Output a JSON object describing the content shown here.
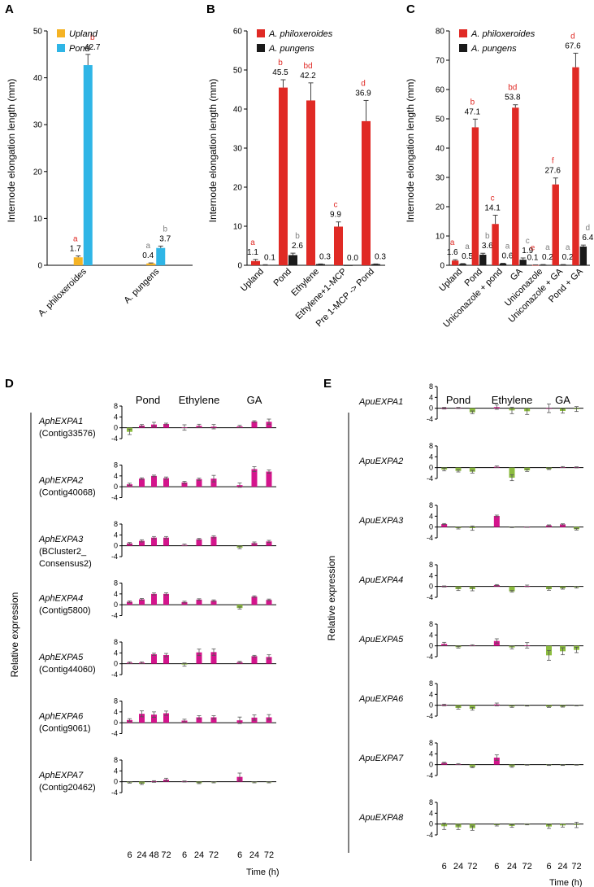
{
  "colors": {
    "upland": "#f5b324",
    "pond": "#2fb5e6",
    "philoxeroides": "#e02a25",
    "pungens": "#1a1a1a",
    "positive": "#d4148c",
    "negative": "#8cbd3f",
    "significance": "#e02a25",
    "significance_grey": "#7f7f7f"
  },
  "axis_title": "Internode elongation length (mm)",
  "relative_expression_label": "Relative expression",
  "time_label": "Time (h)",
  "panels": {
    "A": {
      "letter": "A"
    },
    "B": {
      "letter": "B"
    },
    "C": {
      "letter": "C"
    },
    "D": {
      "letter": "D"
    },
    "E": {
      "letter": "E"
    }
  },
  "chart_data": [
    {
      "panel": "A",
      "type": "bar",
      "title": "",
      "xlabel": "",
      "ylabel": "Internode elongation length (mm)",
      "ylim": [
        0,
        50
      ],
      "yticks": [
        0,
        10,
        20,
        30,
        40,
        50
      ],
      "categories": [
        "A. philoxeroides",
        "A. pungens"
      ],
      "series": [
        {
          "name": "Upland",
          "color": "#f5b324",
          "values": [
            1.7,
            0.4
          ],
          "errors": [
            0.3,
            0.1
          ],
          "labels": [
            "1.7",
            "0.4"
          ],
          "sig": [
            "a",
            "a"
          ],
          "sig_colors": [
            "#e02a25",
            "#7f7f7f"
          ]
        },
        {
          "name": "Pond",
          "color": "#2fb5e6",
          "values": [
            42.7,
            3.7
          ],
          "errors": [
            2.3,
            0.4
          ],
          "labels": [
            "42.7",
            "3.7"
          ],
          "sig": [
            "b",
            "b"
          ],
          "sig_colors": [
            "#e02a25",
            "#7f7f7f"
          ]
        }
      ],
      "legend": "top-right"
    },
    {
      "panel": "B",
      "type": "bar",
      "title": "",
      "ylabel": "Internode elongation length (mm)",
      "ylim": [
        0,
        60
      ],
      "yticks": [
        0,
        10,
        20,
        30,
        40,
        50,
        60
      ],
      "categories": [
        "Upland",
        "Pond",
        "Ethylene",
        "Ethylene+1-MCP",
        "Pre 1-MCP -> Pond"
      ],
      "series": [
        {
          "name": "A. philoxeroides",
          "color": "#e02a25",
          "values": [
            1.1,
            45.5,
            42.2,
            9.9,
            36.9
          ],
          "errors": [
            0.4,
            2.0,
            4.5,
            1.2,
            5.3
          ],
          "labels": [
            "1.1",
            "45.5",
            "42.2",
            "9.9",
            "36.9"
          ],
          "sig": [
            "a",
            "b",
            "bd",
            "c",
            "d"
          ],
          "sig_colors": [
            "#e02a25",
            "#e02a25",
            "#e02a25",
            "#e02a25",
            "#e02a25"
          ]
        },
        {
          "name": "A. pungens",
          "color": "#1a1a1a",
          "values": [
            0.1,
            2.6,
            0.3,
            0.0,
            0.3
          ],
          "errors": [
            0.05,
            0.5,
            0.05,
            0.0,
            0.05
          ],
          "labels": [
            "0.1",
            "2.6",
            "0.3",
            "0.0",
            "0.3"
          ],
          "sig": [
            "",
            "b",
            "",
            "",
            ""
          ],
          "sig_colors": [
            "#7f7f7f",
            "#7f7f7f",
            "#7f7f7f",
            "#7f7f7f",
            "#7f7f7f"
          ]
        }
      ],
      "legend": "top-left"
    },
    {
      "panel": "C",
      "type": "bar",
      "title": "",
      "ylabel": "Internode elongation length (mm)",
      "ylim": [
        0,
        80
      ],
      "yticks": [
        0,
        10,
        20,
        30,
        40,
        50,
        60,
        70,
        80
      ],
      "categories": [
        "Upland",
        "Pond",
        "Uniconazole + pond",
        "GA",
        "Uniconazole",
        "Uniconazole + GA",
        "Pond + GA"
      ],
      "series": [
        {
          "name": "A. philoxeroides",
          "color": "#e02a25",
          "values": [
            1.6,
            47.1,
            14.1,
            53.8,
            0.1,
            27.6,
            67.6
          ],
          "errors": [
            0.3,
            2.8,
            3.0,
            1.0,
            0.05,
            2.2,
            4.8
          ],
          "labels": [
            "1.6",
            "47.1",
            "14.1",
            "53.8",
            "0.1",
            "27.6",
            "67.6"
          ],
          "sig": [
            "a",
            "b",
            "c",
            "bd",
            "e",
            "f",
            "d"
          ],
          "sig_colors": [
            "#e02a25",
            "#e02a25",
            "#e02a25",
            "#e02a25",
            "#e02a25",
            "#e02a25",
            "#e02a25"
          ]
        },
        {
          "name": "A. pungens",
          "color": "#1a1a1a",
          "values": [
            0.5,
            3.6,
            0.6,
            1.9,
            0.2,
            0.2,
            6.4
          ],
          "errors": [
            0.1,
            0.5,
            0.1,
            0.6,
            0.05,
            0.05,
            0.5
          ],
          "labels": [
            "0.5",
            "3.6",
            "0.6",
            "1.9",
            "0.2",
            "0.2",
            "6.4"
          ],
          "sig": [
            "a",
            "b",
            "a",
            "c",
            "a",
            "a",
            "d"
          ],
          "sig_colors": [
            "#7f7f7f",
            "#7f7f7f",
            "#7f7f7f",
            "#7f7f7f",
            "#7f7f7f",
            "#7f7f7f",
            "#7f7f7f"
          ]
        }
      ],
      "legend": "top-left"
    },
    {
      "panel": "D",
      "type": "bar",
      "title": "",
      "ylabel": "Relative expression",
      "xlabel": "Time (h)",
      "ylim": [
        -4,
        8
      ],
      "yticks": [
        -4,
        0,
        4,
        8
      ],
      "groups": [
        {
          "name": "Pond",
          "times": [
            "6",
            "24",
            "48",
            "72"
          ]
        },
        {
          "name": "Ethylene",
          "times": [
            "6",
            "24",
            "72"
          ]
        },
        {
          "name": "GA",
          "times": [
            "6",
            "24",
            "72"
          ]
        }
      ],
      "genes": [
        {
          "name": "AphEXPA1",
          "contig": [
            "(Contig33576)"
          ],
          "values": [
            [
              -1.5,
              0.8,
              1.2,
              1.4
            ],
            [
              0.1,
              0.7,
              0.4
            ],
            [
              0.5,
              2.3,
              2.2
            ]
          ],
          "errors": [
            [
              1.0,
              0.4,
              0.8,
              0.3
            ],
            [
              1.0,
              0.6,
              0.8
            ],
            [
              0.4,
              0.3,
              1.0
            ]
          ]
        },
        {
          "name": "AphEXPA2",
          "contig": [
            "(Contig40068)"
          ],
          "values": [
            [
              0.9,
              3.0,
              4.0,
              3.2
            ],
            [
              1.6,
              2.8,
              3.0
            ],
            [
              0.6,
              6.5,
              5.6
            ]
          ],
          "errors": [
            [
              0.4,
              0.3,
              0.3,
              0.4
            ],
            [
              0.4,
              0.4,
              1.2
            ],
            [
              0.8,
              0.9,
              0.6
            ]
          ]
        },
        {
          "name": "AphEXPA3",
          "contig": [
            "(BCluster2_",
            "Consensus2)"
          ],
          "values": [
            [
              0.9,
              1.8,
              3.0,
              3.0
            ],
            [
              0.3,
              2.4,
              3.3
            ],
            [
              -0.7,
              1.0,
              1.6
            ]
          ],
          "errors": [
            [
              0.3,
              0.4,
              0.4,
              0.4
            ],
            [
              0.3,
              0.3,
              0.4
            ],
            [
              0.4,
              0.4,
              0.4
            ]
          ]
        },
        {
          "name": "AphEXPA4",
          "contig": [
            "(Contig5800)"
          ],
          "values": [
            [
              1.1,
              2.0,
              4.0,
              4.0
            ],
            [
              1.0,
              1.9,
              1.5
            ],
            [
              -1.2,
              3.0,
              1.8
            ]
          ],
          "errors": [
            [
              0.3,
              0.3,
              0.4,
              0.4
            ],
            [
              0.3,
              0.3,
              0.3
            ],
            [
              0.4,
              0.3,
              0.3
            ]
          ]
        },
        {
          "name": "AphEXPA5",
          "contig": [
            "(Contig44060)"
          ],
          "values": [
            [
              0.4,
              0.4,
              3.5,
              3.2
            ],
            [
              -0.3,
              4.2,
              4.3
            ],
            [
              0.6,
              2.8,
              2.5
            ]
          ],
          "errors": [
            [
              0.3,
              0.3,
              0.4,
              0.6
            ],
            [
              0.6,
              1.2,
              1.2
            ],
            [
              0.3,
              0.3,
              0.8
            ]
          ]
        },
        {
          "name": "AphEXPA6",
          "contig": [
            "(Contig9061)"
          ],
          "values": [
            [
              1.0,
              3.3,
              3.0,
              3.5
            ],
            [
              0.8,
              2.0,
              2.0
            ],
            [
              0.9,
              1.9,
              2.0
            ]
          ],
          "errors": [
            [
              0.5,
              1.1,
              1.0,
              0.8
            ],
            [
              0.5,
              0.6,
              0.6
            ],
            [
              1.2,
              1.0,
              1.0
            ]
          ]
        },
        {
          "name": "AphEXPA7",
          "contig": [
            "(Contig20462)"
          ],
          "values": [
            [
              -0.3,
              -0.7,
              0.1,
              0.8
            ],
            [
              0.1,
              -0.5,
              -0.2
            ],
            [
              1.8,
              -0.2,
              -0.2
            ]
          ],
          "errors": [
            [
              0.2,
              0.3,
              0.3,
              0.5
            ],
            [
              0.2,
              0.2,
              0.2
            ],
            [
              1.4,
              0.2,
              0.2
            ]
          ]
        }
      ]
    },
    {
      "panel": "E",
      "type": "bar",
      "title": "",
      "ylabel": "Relative expression",
      "xlabel": "Time (h)",
      "ylim": [
        -4,
        8
      ],
      "yticks": [
        -4,
        0,
        4,
        8
      ],
      "groups": [
        {
          "name": "Pond",
          "times": [
            "6",
            "24",
            "72"
          ]
        },
        {
          "name": "Ethylene",
          "times": [
            "6",
            "24",
            "72"
          ]
        },
        {
          "name": "GA",
          "times": [
            "6",
            "24",
            "72"
          ]
        }
      ],
      "genes": [
        {
          "name": "ApuEXPA1",
          "contig": [],
          "values": [
            [
              0.0,
              0.1,
              -1.5
            ],
            [
              0.4,
              -0.8,
              -1.1
            ],
            [
              0.0,
              -1.0,
              -0.3
            ]
          ],
          "errors": [
            [
              0.3,
              0.2,
              0.5
            ],
            [
              0.8,
              1.2,
              1.2
            ],
            [
              1.6,
              0.8,
              0.9
            ]
          ]
        },
        {
          "name": "ApuEXPA2",
          "contig": [],
          "values": [
            [
              -0.7,
              -1.2,
              -1.5
            ],
            [
              0.3,
              -3.7,
              -1.0
            ],
            [
              -0.5,
              0.2,
              0.1
            ]
          ],
          "errors": [
            [
              0.5,
              0.4,
              0.5
            ],
            [
              0.3,
              1.1,
              0.4
            ],
            [
              0.2,
              0.2,
              0.2
            ]
          ]
        },
        {
          "name": "ApuEXPA3",
          "contig": [],
          "values": [
            [
              1.1,
              -0.4,
              -0.4
            ],
            [
              4.1,
              -0.1,
              0.0
            ],
            [
              0.6,
              1.0,
              -0.8
            ]
          ],
          "errors": [
            [
              0.2,
              0.3,
              0.8
            ],
            [
              0.3,
              0.1,
              0.1
            ],
            [
              0.2,
              0.2,
              0.3
            ]
          ]
        },
        {
          "name": "ApuEXPA4",
          "contig": [],
          "values": [
            [
              0.0,
              -1.0,
              -1.0
            ],
            [
              0.5,
              -1.8,
              0.2
            ],
            [
              -1.0,
              -0.7,
              -0.3
            ]
          ],
          "errors": [
            [
              0.2,
              0.5,
              0.6
            ],
            [
              0.2,
              0.3,
              0.3
            ],
            [
              0.4,
              0.3,
              0.3
            ]
          ]
        },
        {
          "name": "ApuEXPA5",
          "contig": [],
          "values": [
            [
              0.7,
              -0.5,
              0.2
            ],
            [
              1.8,
              -0.6,
              0.2
            ],
            [
              -3.5,
              -2.0,
              -1.5
            ]
          ],
          "errors": [
            [
              0.6,
              0.3,
              0.2
            ],
            [
              0.8,
              0.5,
              1.0
            ],
            [
              1.8,
              1.3,
              1.0
            ]
          ]
        },
        {
          "name": "ApuEXPA6",
          "contig": [],
          "values": [
            [
              0.1,
              -1.0,
              -1.3
            ],
            [
              0.3,
              -0.5,
              -0.2
            ],
            [
              -0.6,
              -0.5,
              -0.1
            ]
          ],
          "errors": [
            [
              0.3,
              0.4,
              0.5
            ],
            [
              0.5,
              0.3,
              0.1
            ],
            [
              0.2,
              0.2,
              0.1
            ]
          ]
        },
        {
          "name": "ApuEXPA7",
          "contig": [],
          "values": [
            [
              0.7,
              0.2,
              -0.9
            ],
            [
              2.6,
              -0.7,
              -0.1
            ],
            [
              -0.2,
              -0.2,
              -0.1
            ]
          ],
          "errors": [
            [
              0.2,
              0.2,
              0.2
            ],
            [
              1.0,
              0.3,
              0.1
            ],
            [
              0.1,
              0.1,
              0.1
            ]
          ]
        },
        {
          "name": "ApuEXPA8",
          "contig": [],
          "values": [
            [
              -0.8,
              -1.2,
              -1.5
            ],
            [
              -0.4,
              -0.7,
              -0.1
            ],
            [
              -0.9,
              -0.5,
              -0.3
            ]
          ],
          "errors": [
            [
              1.2,
              0.8,
              0.8
            ],
            [
              0.3,
              0.5,
              0.2
            ],
            [
              0.7,
              0.6,
              1.0
            ]
          ]
        }
      ]
    }
  ]
}
